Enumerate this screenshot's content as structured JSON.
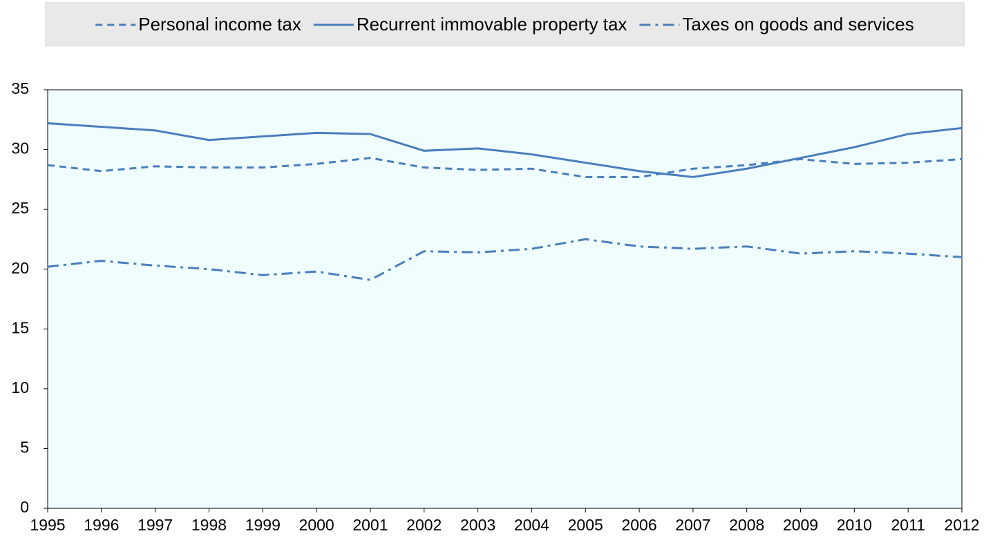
{
  "chart_data": {
    "type": "line",
    "x": [
      1995,
      1996,
      1997,
      1998,
      1999,
      2000,
      2001,
      2002,
      2003,
      2004,
      2005,
      2006,
      2007,
      2008,
      2009,
      2010,
      2011,
      2012
    ],
    "xlim": [
      1995,
      2012
    ],
    "xticks": [
      1995,
      1996,
      1997,
      1998,
      1999,
      2000,
      2001,
      2002,
      2003,
      2004,
      2005,
      2006,
      2007,
      2008,
      2009,
      2010,
      2011,
      2012
    ],
    "ylim": [
      0,
      35
    ],
    "yticks": [
      0,
      5,
      10,
      15,
      20,
      25,
      30,
      35
    ],
    "legend": "top",
    "series": [
      {
        "name": "Personal income tax",
        "color": "#4a7ebb",
        "linestyle": "dashed",
        "values": [
          28.7,
          28.2,
          28.6,
          28.5,
          28.5,
          28.8,
          29.3,
          28.5,
          28.3,
          28.4,
          27.7,
          27.7,
          28.4,
          28.7,
          29.2,
          28.8,
          28.9,
          29.2
        ]
      },
      {
        "name": "Recurrent immovable property tax",
        "color": "#4a7ebb",
        "linestyle": "solid",
        "values": [
          32.2,
          31.9,
          31.6,
          30.8,
          31.1,
          31.4,
          31.3,
          29.9,
          30.1,
          29.6,
          28.9,
          28.2,
          27.7,
          28.4,
          29.3,
          30.2,
          31.3,
          31.8
        ]
      },
      {
        "name": "Taxes on goods and services",
        "color": "#4a7ebb",
        "linestyle": "dashdot",
        "values": [
          20.2,
          20.7,
          20.3,
          20.0,
          19.5,
          19.8,
          19.1,
          21.5,
          21.4,
          21.7,
          22.5,
          21.9,
          21.7,
          21.9,
          21.3,
          21.5,
          21.3,
          21.0
        ]
      }
    ]
  }
}
